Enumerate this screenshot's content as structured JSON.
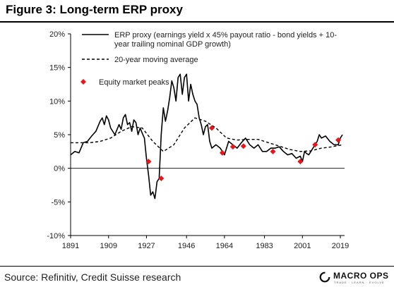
{
  "figure": {
    "title": "Figure 3: Long-term ERP proxy",
    "source": "Source: Refinitiv, Credit Suisse research",
    "logo_text": "MACRO OPS",
    "logo_tagline": "TRADE · LEARN · EVOLVE"
  },
  "chart_data": {
    "type": "line",
    "title": "",
    "xlabel": "",
    "ylabel": "",
    "xlim": [
      1891,
      2021
    ],
    "ylim": [
      -10,
      20
    ],
    "y_ticks": [
      -10,
      -5,
      0,
      5,
      10,
      15,
      20
    ],
    "y_tick_labels": [
      "-10%",
      "-5%",
      "0%",
      "5%",
      "10%",
      "15%",
      "20%"
    ],
    "x_ticks": [
      1891,
      1909,
      1927,
      1946,
      1964,
      1983,
      2001,
      2019
    ],
    "x_tick_labels": [
      "1891",
      "1909",
      "1927",
      "1946",
      "1964",
      "1983",
      "2001",
      "2019"
    ],
    "grid": false,
    "legend_position": "top-left",
    "colors": {
      "erp": "#000000",
      "ma": "#000000",
      "peaks": "#e8161b"
    },
    "series": [
      {
        "name": "ERP proxy (earnings yield x 45% payout ratio - bond yields + 10-year trailing nominal GDP growth)",
        "style": "solid",
        "x": [
          1891,
          1893,
          1895,
          1897,
          1899,
          1901,
          1903,
          1905,
          1906,
          1907,
          1908,
          1909,
          1910,
          1912,
          1914,
          1915,
          1916,
          1917,
          1918,
          1919,
          1920,
          1921,
          1922,
          1923,
          1924,
          1925,
          1926,
          1927,
          1928,
          1929,
          1930,
          1931,
          1932,
          1933,
          1934,
          1935,
          1936,
          1937,
          1938,
          1939,
          1940,
          1941,
          1942,
          1943,
          1944,
          1945,
          1946,
          1947,
          1948,
          1949,
          1950,
          1951,
          1952,
          1953,
          1954,
          1955,
          1956,
          1957,
          1958,
          1960,
          1962,
          1964,
          1966,
          1968,
          1970,
          1972,
          1974,
          1976,
          1978,
          1980,
          1982,
          1984,
          1986,
          1988,
          1990,
          1992,
          1994,
          1996,
          1998,
          2000,
          2001,
          2002,
          2003,
          2004,
          2006,
          2008,
          2009,
          2010,
          2012,
          2014,
          2016,
          2018,
          2019,
          2020
        ],
        "values": [
          2.0,
          2.5,
          2.3,
          3.8,
          4.0,
          4.8,
          5.5,
          7.0,
          7.5,
          6.5,
          7.8,
          7.2,
          6.0,
          5.0,
          6.5,
          5.8,
          7.5,
          8.0,
          6.5,
          6.8,
          5.5,
          7.2,
          6.8,
          5.0,
          6.0,
          5.2,
          4.5,
          1.5,
          -1.0,
          -4.0,
          -3.5,
          -4.5,
          -2.0,
          -1.5,
          5.0,
          9.0,
          7.0,
          8.5,
          10.5,
          13.0,
          12.0,
          10.0,
          13.5,
          14.0,
          11.0,
          13.5,
          14.0,
          10.0,
          12.5,
          11.0,
          10.0,
          9.5,
          7.5,
          6.5,
          5.0,
          6.2,
          6.5,
          4.0,
          3.0,
          3.5,
          3.0,
          2.0,
          4.0,
          3.5,
          3.0,
          3.8,
          4.5,
          3.5,
          3.0,
          3.5,
          2.5,
          2.5,
          3.0,
          3.0,
          3.2,
          2.5,
          2.0,
          2.2,
          1.5,
          1.8,
          1.0,
          2.5,
          2.2,
          2.0,
          3.0,
          4.0,
          5.0,
          4.5,
          4.8,
          4.0,
          3.5,
          3.5,
          4.5,
          5.0
        ]
      },
      {
        "name": "20-year moving average",
        "style": "dashed",
        "x": [
          1891,
          1900,
          1905,
          1910,
          1915,
          1920,
          1925,
          1930,
          1935,
          1940,
          1945,
          1950,
          1955,
          1960,
          1965,
          1970,
          1975,
          1980,
          1985,
          1990,
          1995,
          2000,
          2005,
          2010,
          2015,
          2020
        ],
        "values": [
          3.8,
          3.8,
          4.0,
          4.5,
          5.5,
          6.2,
          6.0,
          4.0,
          2.5,
          3.5,
          6.0,
          7.5,
          7.0,
          6.0,
          4.5,
          4.2,
          4.3,
          4.3,
          3.8,
          3.3,
          2.8,
          2.5,
          2.6,
          3.0,
          3.2,
          3.5
        ]
      },
      {
        "name": "Equity market peaks",
        "style": "markers",
        "x": [
          1928,
          1934,
          1958,
          1963,
          1968,
          1973,
          1987,
          2000,
          2007,
          2018
        ],
        "values": [
          1.0,
          -1.5,
          6.0,
          2.3,
          3.2,
          3.3,
          2.5,
          1.0,
          3.5,
          4.2
        ]
      }
    ]
  }
}
